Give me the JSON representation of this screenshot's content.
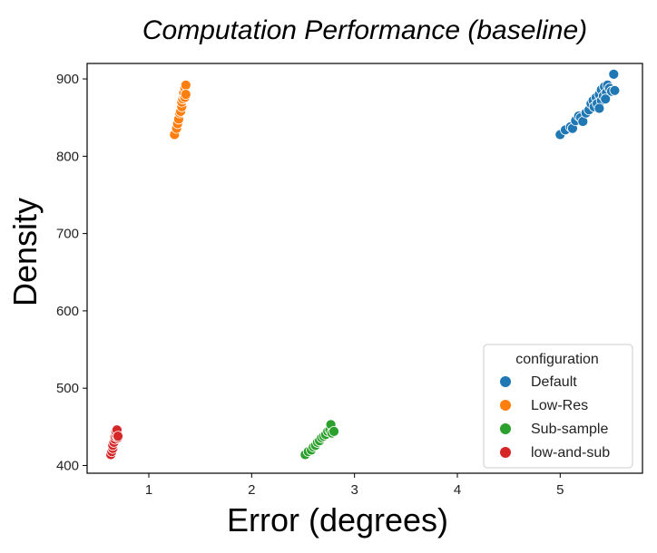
{
  "chart_data": {
    "type": "scatter",
    "title": "Computation Performance (baseline)",
    "xlabel": "Error (degrees)",
    "ylabel": "Density",
    "xlim": [
      0.4,
      5.8
    ],
    "ylim": [
      390,
      920
    ],
    "xticks": [
      "1",
      "2",
      "3",
      "4",
      "5"
    ],
    "yticks": [
      "400",
      "500",
      "600",
      "700",
      "800",
      "900"
    ],
    "grid": false,
    "legend": {
      "title": "configuration",
      "placement": "lower-right"
    },
    "series": [
      {
        "name": "Default",
        "color": "#1f77b4",
        "points": [
          [
            5.0,
            828
          ],
          [
            5.05,
            834
          ],
          [
            5.1,
            838
          ],
          [
            5.12,
            836
          ],
          [
            5.15,
            846
          ],
          [
            5.18,
            852
          ],
          [
            5.2,
            850
          ],
          [
            5.22,
            845
          ],
          [
            5.25,
            856
          ],
          [
            5.28,
            860
          ],
          [
            5.3,
            868
          ],
          [
            5.32,
            872
          ],
          [
            5.33,
            864
          ],
          [
            5.35,
            876
          ],
          [
            5.36,
            868
          ],
          [
            5.38,
            880
          ],
          [
            5.4,
            872
          ],
          [
            5.4,
            886
          ],
          [
            5.42,
            878
          ],
          [
            5.43,
            890
          ],
          [
            5.45,
            882
          ],
          [
            5.46,
            892
          ],
          [
            5.48,
            888
          ],
          [
            5.5,
            884
          ],
          [
            5.52,
            906
          ],
          [
            5.53,
            885
          ],
          [
            5.38,
            862
          ],
          [
            5.44,
            874
          ]
        ]
      },
      {
        "name": "Low-Res",
        "color": "#ff7f0e",
        "points": [
          [
            1.25,
            828
          ],
          [
            1.27,
            836
          ],
          [
            1.28,
            842
          ],
          [
            1.29,
            848
          ],
          [
            1.3,
            856
          ],
          [
            1.31,
            858
          ],
          [
            1.32,
            864
          ],
          [
            1.32,
            870
          ],
          [
            1.33,
            874
          ],
          [
            1.34,
            878
          ],
          [
            1.34,
            882
          ],
          [
            1.35,
            888
          ],
          [
            1.36,
            892
          ],
          [
            1.35,
            876
          ],
          [
            1.36,
            880
          ]
        ]
      },
      {
        "name": "Sub-sample",
        "color": "#2ca02c",
        "points": [
          [
            2.52,
            414
          ],
          [
            2.55,
            418
          ],
          [
            2.58,
            420
          ],
          [
            2.6,
            424
          ],
          [
            2.62,
            426
          ],
          [
            2.64,
            430
          ],
          [
            2.66,
            432
          ],
          [
            2.68,
            436
          ],
          [
            2.7,
            438
          ],
          [
            2.72,
            440
          ],
          [
            2.74,
            444
          ],
          [
            2.76,
            446
          ],
          [
            2.77,
            453
          ],
          [
            2.78,
            442
          ],
          [
            2.8,
            444
          ]
        ]
      },
      {
        "name": "low-and-sub",
        "color": "#d62728",
        "points": [
          [
            0.63,
            414
          ],
          [
            0.64,
            418
          ],
          [
            0.65,
            422
          ],
          [
            0.65,
            426
          ],
          [
            0.66,
            430
          ],
          [
            0.67,
            434
          ],
          [
            0.67,
            438
          ],
          [
            0.68,
            440
          ],
          [
            0.68,
            444
          ],
          [
            0.69,
            446
          ],
          [
            0.7,
            436
          ],
          [
            0.7,
            438
          ]
        ]
      }
    ]
  }
}
